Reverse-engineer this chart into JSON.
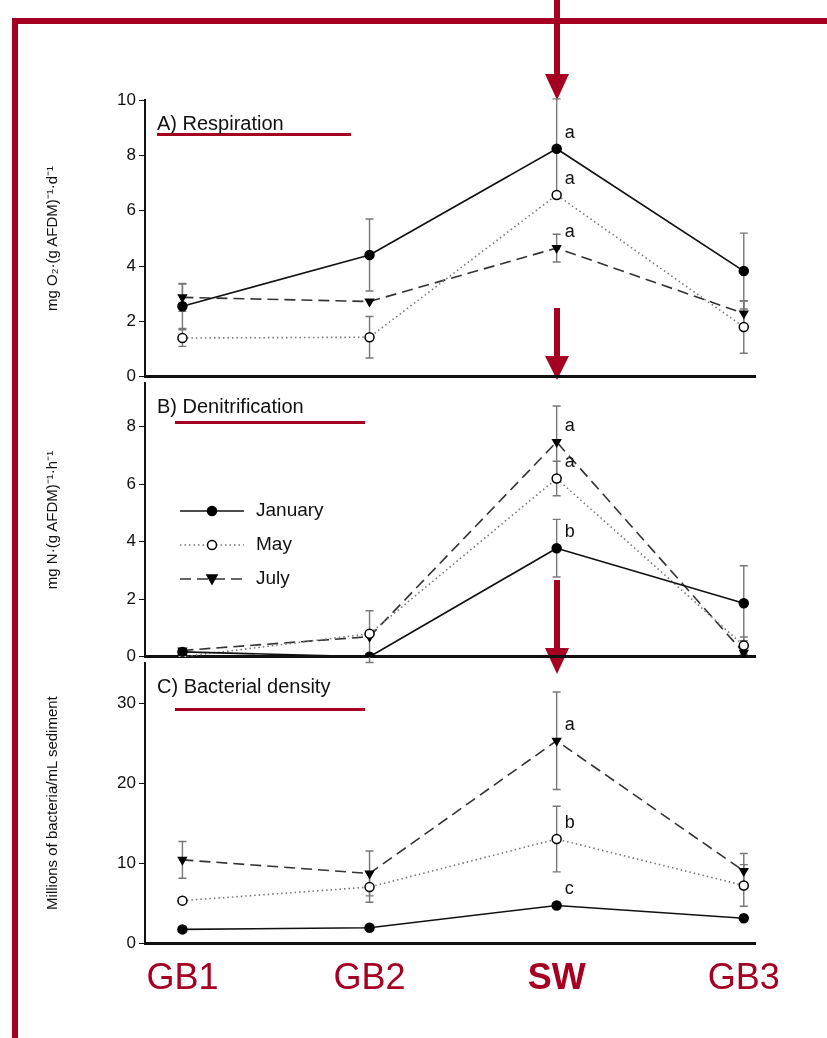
{
  "chart_data": [
    {
      "type": "line",
      "title": "A) Respiration",
      "ylabel": "mg O₂·(g AFDM)⁻¹·d⁻¹",
      "categories": [
        "GB1",
        "GB2",
        "SW",
        "GB3"
      ],
      "ylim": [
        0,
        10
      ],
      "yticks": [
        0,
        2,
        4,
        6,
        8,
        10
      ],
      "grid": false,
      "tick_labels": "y",
      "series": [
        {
          "color": "#111111",
          "marker": "circle",
          "line_style": "solid",
          "values": [
            2.55,
            4.4,
            8.24,
            3.82
          ],
          "errors": [
            0.8,
            1.3,
            1.8,
            1.37
          ]
        },
        {
          "color": "#777777",
          "marker": "circle",
          "line_style": "dotted",
          "values": [
            1.4,
            1.43,
            6.57,
            1.8
          ],
          "errors": [
            0.3,
            0.75,
            null,
            0.95
          ]
        },
        {
          "color": "#333333",
          "marker": "triangle",
          "line_style": "dashed",
          "values": [
            2.87,
            2.72,
            4.65,
            2.29
          ],
          "errors": [
            0.5,
            null,
            0.5,
            0.45
          ]
        }
      ],
      "annotations": [
        {
          "text": "a",
          "x": "SW",
          "y": 8.24
        },
        {
          "text": "a",
          "x": "SW",
          "y": 6.57
        },
        {
          "text": "a",
          "x": "SW",
          "y": 4.65
        }
      ]
    },
    {
      "type": "line",
      "title": "B) Denitrification",
      "ylabel": "mg N·(g AFDM)⁻¹·h⁻¹",
      "categories": [
        "GB1",
        "GB2",
        "SW",
        "GB3"
      ],
      "ylim": [
        0,
        9.5
      ],
      "yticks": [
        0,
        2,
        4,
        6,
        8
      ],
      "grid": false,
      "tick_labels": "y",
      "legend": "left",
      "series": [
        {
          "name": "January",
          "color": "#111111",
          "marker": "circle",
          "line_style": "solid",
          "values": [
            0.17,
            0,
            3.77,
            1.86
          ],
          "errors": [
            null,
            null,
            1.0,
            1.3
          ]
        },
        {
          "name": "May",
          "color": "#777777",
          "marker": "circle",
          "line_style": "dotted",
          "values": [
            0,
            0.8,
            6.19,
            0.39
          ],
          "errors": [
            null,
            null,
            0.6,
            0.3
          ]
        },
        {
          "name": "July",
          "color": "#333333",
          "marker": "triangle",
          "line_style": "dashed",
          "values": [
            0.22,
            0.7,
            7.46,
            0.14
          ],
          "errors": [
            null,
            0.9,
            1.25,
            null
          ]
        }
      ],
      "annotations": [
        {
          "text": "a",
          "x": "SW",
          "y": 7.46
        },
        {
          "text": "a",
          "x": "SW",
          "y": 6.19
        },
        {
          "text": "b",
          "x": "SW",
          "y": 3.77
        }
      ]
    },
    {
      "type": "line",
      "title": "C) Bacterial density",
      "ylabel": "Millions of bacteria/mL sediment",
      "categories": [
        "GB1",
        "GB2",
        "SW",
        "GB3"
      ],
      "ylim": [
        0,
        35
      ],
      "yticks": [
        0,
        10,
        20,
        30
      ],
      "grid": false,
      "series": [
        {
          "color": "#111111",
          "marker": "circle",
          "line_style": "solid",
          "values": [
            1.7,
            1.9,
            4.7,
            3.1
          ]
        },
        {
          "color": "#777777",
          "marker": "circle",
          "line_style": "dotted",
          "values": [
            5.3,
            7.0,
            13.0,
            7.2
          ],
          "errors": [
            null,
            1.9,
            4.1,
            2.6
          ]
        },
        {
          "color": "#333333",
          "marker": "triangle",
          "line_style": "dashed",
          "values": [
            10.4,
            8.7,
            25.3,
            9.0
          ],
          "errors": [
            2.3,
            2.8,
            6.1,
            2.2
          ]
        }
      ],
      "annotations": [
        {
          "text": "a",
          "x": "SW",
          "y": 25.3
        },
        {
          "text": "b",
          "x": "SW",
          "y": 13.0
        },
        {
          "text": "c",
          "x": "SW",
          "y": 4.7
        }
      ]
    }
  ]
}
